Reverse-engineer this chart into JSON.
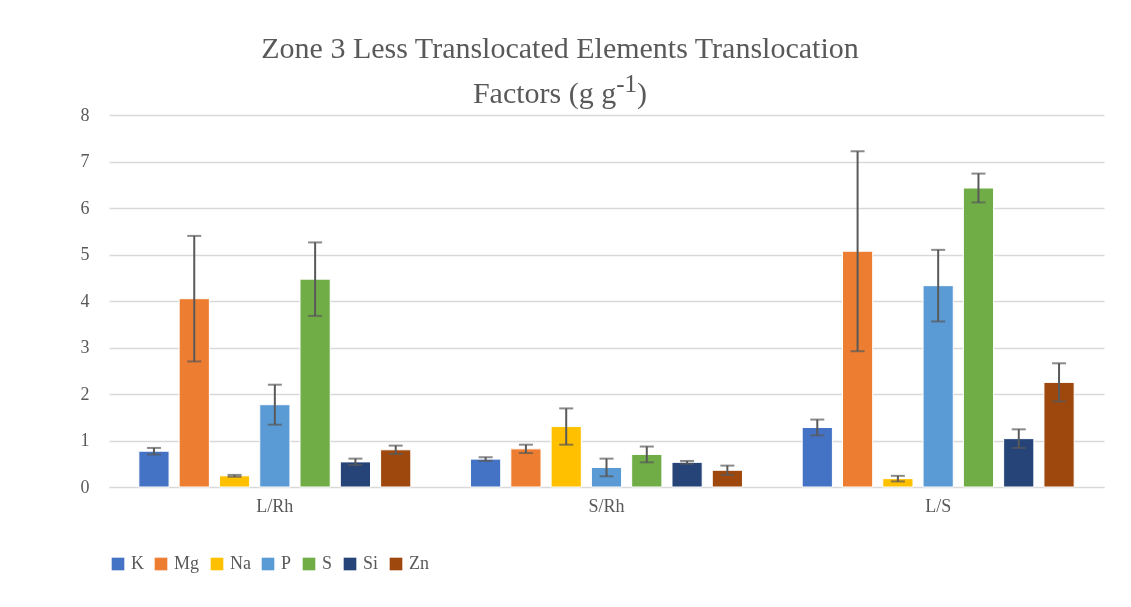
{
  "chart_data": {
    "type": "bar",
    "title": "Zone 3 Less Translocated Elements Translocation Factors (g g$^{-1}$)",
    "categories": [
      "L/Rh",
      "S/Rh",
      "L/S"
    ],
    "ylim": [
      0,
      8
    ],
    "yticks": [
      0,
      1,
      2,
      3,
      4,
      5,
      6,
      7,
      8
    ],
    "grid": "y",
    "legend": "bottom",
    "series": [
      {
        "name": "K",
        "color": "#4472c4",
        "values": [
          0.77,
          0.6,
          1.28
        ],
        "errors": [
          0.07,
          0.04,
          0.17
        ]
      },
      {
        "name": "Mg",
        "color": "#ed7d31",
        "values": [
          4.05,
          0.82,
          5.07
        ],
        "errors": [
          1.35,
          0.09,
          2.15
        ]
      },
      {
        "name": "Na",
        "color": "#ffc000",
        "values": [
          0.24,
          1.3,
          0.18
        ],
        "errors": [
          0.02,
          0.39,
          0.06
        ]
      },
      {
        "name": "P",
        "color": "#5b9bd5",
        "values": [
          1.77,
          0.42,
          4.33
        ],
        "errors": [
          0.43,
          0.19,
          0.77
        ]
      },
      {
        "name": "S",
        "color": "#70ad47",
        "values": [
          4.47,
          0.7,
          6.43
        ],
        "errors": [
          0.79,
          0.17,
          0.31
        ]
      },
      {
        "name": "Si",
        "color": "#264478",
        "values": [
          0.54,
          0.53,
          1.04
        ],
        "errors": [
          0.07,
          0.03,
          0.2
        ]
      },
      {
        "name": "Zn",
        "color": "#9e480e",
        "values": [
          0.8,
          0.36,
          2.25
        ],
        "errors": [
          0.09,
          0.1,
          0.41
        ]
      }
    ]
  }
}
